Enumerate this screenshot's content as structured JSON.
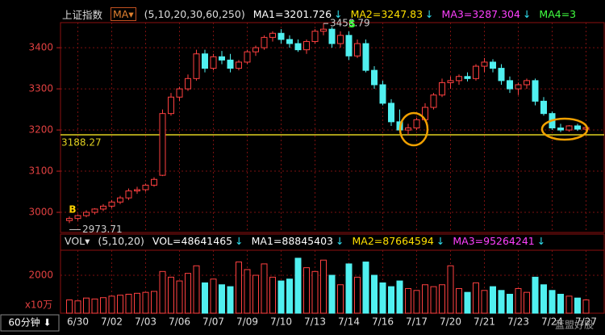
{
  "chart_data": {
    "type": "candlestick",
    "title": "上证指数",
    "ma_button": "MA▾",
    "ma_params": "(5,10,20,30,60,250)",
    "indicators": [
      {
        "label": "MA1=3201.726",
        "arrow": "↓",
        "color": "#ffffff"
      },
      {
        "label": "MA2=3247.83",
        "arrow": "↓",
        "color": "#ffe000"
      },
      {
        "label": "MA3=3287.304",
        "arrow": "↓",
        "color": "#ff40ff"
      },
      {
        "label": "MA4=3",
        "arrow": "",
        "color": "#40ff40"
      }
    ],
    "volume_button": "VOL▾",
    "volume_params": "(5,10,20)",
    "volume_indicators": [
      {
        "label": "VOL=48641465",
        "arrow": "↓",
        "color": "#ffffff"
      },
      {
        "label": "MA1=88845403",
        "arrow": "↓",
        "color": "#ffffff"
      },
      {
        "label": "MA2=87664594",
        "arrow": "↓",
        "color": "#ffe000"
      },
      {
        "label": "MA3=95264241",
        "arrow": "↓",
        "color": "#ff40ff"
      }
    ],
    "period_button": "60分钟 ⬇",
    "volume_unit": "x10万",
    "watermark": "蓝盟好股",
    "categories": [
      null,
      "6/30",
      null,
      null,
      null,
      "7/02",
      null,
      null,
      null,
      "7/03",
      null,
      null,
      null,
      "7/06",
      null,
      null,
      null,
      "7/07",
      null,
      null,
      null,
      "7/09",
      null,
      null,
      null,
      "7/10",
      null,
      null,
      null,
      "7/13",
      null,
      null,
      null,
      "7/14",
      null,
      null,
      null,
      "7/16",
      null,
      null,
      null,
      "7/17",
      null,
      null,
      null,
      "7/20",
      null,
      null,
      null,
      "7/21",
      null,
      null,
      null,
      "7/23",
      null,
      null,
      null,
      "7/24",
      null,
      null,
      null,
      "7/27"
    ],
    "open": [
      2980,
      2985,
      2992,
      3000,
      3008,
      3015,
      3025,
      3035,
      3052,
      3055,
      3066,
      3090,
      3240,
      3280,
      3300,
      3325,
      3385,
      3350,
      3378,
      3370,
      3350,
      3365,
      3390,
      3400,
      3425,
      3435,
      3420,
      3410,
      3395,
      3415,
      3440,
      3445,
      3410,
      3430,
      3380,
      3410,
      3345,
      3310,
      3265,
      3220,
      3200,
      3205,
      3225,
      3255,
      3285,
      3315,
      3320,
      3330,
      3325,
      3355,
      3365,
      3350,
      3320,
      3300,
      3310,
      3320,
      3270,
      3240,
      3205,
      3200,
      3210,
      3202
    ],
    "high": [
      2990,
      2995,
      3005,
      3010,
      3020,
      3030,
      3040,
      3058,
      3062,
      3070,
      3085,
      3250,
      3290,
      3305,
      3335,
      3395,
      3395,
      3385,
      3392,
      3385,
      3370,
      3395,
      3405,
      3430,
      3440,
      3445,
      3430,
      3420,
      3420,
      3445,
      3458.79,
      3450,
      3440,
      3440,
      3420,
      3420,
      3355,
      3320,
      3275,
      3250,
      3215,
      3230,
      3265,
      3290,
      3325,
      3330,
      3335,
      3340,
      3360,
      3375,
      3372,
      3360,
      3330,
      3315,
      3325,
      3325,
      3280,
      3245,
      3215,
      3212,
      3215,
      3210
    ],
    "low": [
      2973.71,
      2980,
      2988,
      2995,
      3003,
      3010,
      3020,
      3030,
      3045,
      3050,
      3062,
      3088,
      3235,
      3270,
      3295,
      3320,
      3340,
      3345,
      3360,
      3340,
      3345,
      3360,
      3380,
      3395,
      3415,
      3410,
      3400,
      3390,
      3385,
      3410,
      3430,
      3400,
      3400,
      3370,
      3375,
      3340,
      3300,
      3260,
      3210,
      3195,
      3188,
      3200,
      3220,
      3250,
      3280,
      3300,
      3310,
      3318,
      3320,
      3340,
      3340,
      3310,
      3290,
      3285,
      3300,
      3260,
      3235,
      3200,
      3195,
      3196,
      3198,
      3198
    ],
    "close": [
      2985,
      2992,
      3000,
      3008,
      3015,
      3025,
      3035,
      3052,
      3055,
      3066,
      3080,
      3240,
      3280,
      3300,
      3325,
      3385,
      3350,
      3378,
      3370,
      3350,
      3365,
      3390,
      3400,
      3425,
      3435,
      3420,
      3410,
      3395,
      3415,
      3440,
      3445,
      3410,
      3430,
      3380,
      3410,
      3345,
      3310,
      3265,
      3220,
      3200,
      3205,
      3225,
      3255,
      3285,
      3315,
      3320,
      3330,
      3325,
      3355,
      3365,
      3350,
      3320,
      3300,
      3310,
      3320,
      3270,
      3240,
      3205,
      3200,
      3210,
      3202,
      3206
    ],
    "volume": [
      700,
      650,
      800,
      750,
      820,
      900,
      950,
      1000,
      1050,
      1100,
      1150,
      2200,
      1900,
      1700,
      2100,
      2500,
      1600,
      1800,
      1500,
      1400,
      2700,
      2300,
      2000,
      2600,
      1900,
      1700,
      1800,
      2900,
      2400,
      2200,
      2800,
      2000,
      1500,
      2600,
      1900,
      2700,
      2000,
      1600,
      1400,
      1700,
      1300,
      1200,
      1500,
      1400,
      1500,
      2500,
      1300,
      1100,
      1600,
      1200,
      1400,
      1200,
      1000,
      1300,
      1100,
      1900,
      1500,
      1200,
      1000,
      900,
      800,
      700
    ],
    "signals": [
      "B",
      null,
      null,
      null,
      null,
      null,
      null,
      null,
      null,
      null,
      null,
      null,
      null,
      null,
      null,
      null,
      null,
      null,
      null,
      null,
      null,
      null,
      null,
      null,
      null,
      null,
      null,
      null,
      null,
      null,
      null,
      null,
      null,
      "S",
      null,
      null,
      null,
      null,
      null,
      null,
      null,
      null,
      null,
      null,
      null,
      null,
      null,
      null,
      null,
      null,
      null,
      null,
      null,
      null,
      null,
      null,
      null,
      null,
      null,
      null,
      null,
      null
    ],
    "signal_colors": {
      "B": "#ffd000",
      "S": "#30ff30"
    },
    "ref_line": 3188.27,
    "ylim": [
      2951,
      3461
    ],
    "yticks": [
      3000,
      3100,
      3200,
      3300,
      3400
    ],
    "volume_ylim": [
      0,
      3320
    ],
    "volume_yticks": [
      2000
    ],
    "up_color": "#ff4040",
    "down_color": "#50f0f0",
    "grid": true
  }
}
